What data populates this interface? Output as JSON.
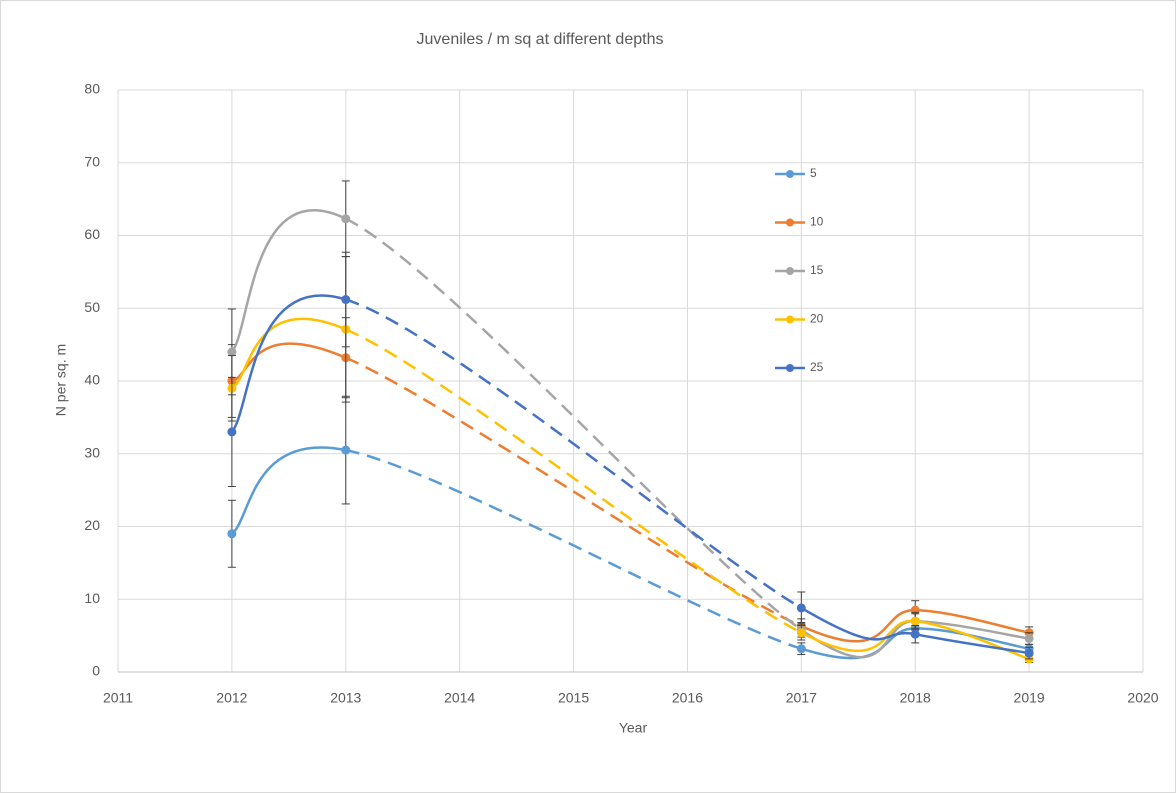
{
  "chart_data": {
    "type": "line",
    "title": "Juveniles / m sq at different depths",
    "xlabel": "Year",
    "ylabel": "N per sq. m",
    "x": [
      2012,
      2013,
      2017,
      2018,
      2019
    ],
    "series": [
      {
        "name": "5",
        "color": "#5b9bd5",
        "values": [
          19,
          30.5,
          3.2,
          6,
          3.2
        ],
        "errors": [
          4.6,
          7.4,
          0.8,
          0.8,
          0.6
        ]
      },
      {
        "name": "10",
        "color": "#ed7d31",
        "values": [
          40,
          43.2,
          6.3,
          8.5,
          5.4
        ],
        "errors": [
          5.0,
          5.5,
          1.0,
          1.3,
          0.8
        ]
      },
      {
        "name": "15",
        "color": "#a5a5a5",
        "values": [
          44,
          62.3,
          5.8,
          7,
          4.6
        ],
        "errors": [
          5.9,
          5.2,
          1.0,
          1.2,
          0.8
        ]
      },
      {
        "name": "20",
        "color": "#ffc000",
        "values": [
          39,
          47.1,
          5.4,
          7,
          1.8
        ],
        "errors": [
          4.5,
          10.0,
          1.0,
          1.0,
          0.5
        ]
      },
      {
        "name": "25",
        "color": "#4472c4",
        "values": [
          33,
          51.2,
          8.8,
          5.2,
          2.6
        ],
        "errors": [
          7.5,
          6.5,
          2.2,
          1.2,
          0.8
        ]
      }
    ],
    "dashed_segments": [
      1
    ],
    "smooth": true,
    "xlim": [
      2011,
      2020
    ],
    "xticks": [
      2011,
      2012,
      2013,
      2014,
      2015,
      2016,
      2017,
      2018,
      2019,
      2020
    ],
    "ylim": [
      0,
      80
    ],
    "yticks": [
      0,
      10,
      20,
      30,
      40,
      50,
      60,
      70,
      80
    ],
    "grid": true,
    "legend_position": "upper right"
  }
}
